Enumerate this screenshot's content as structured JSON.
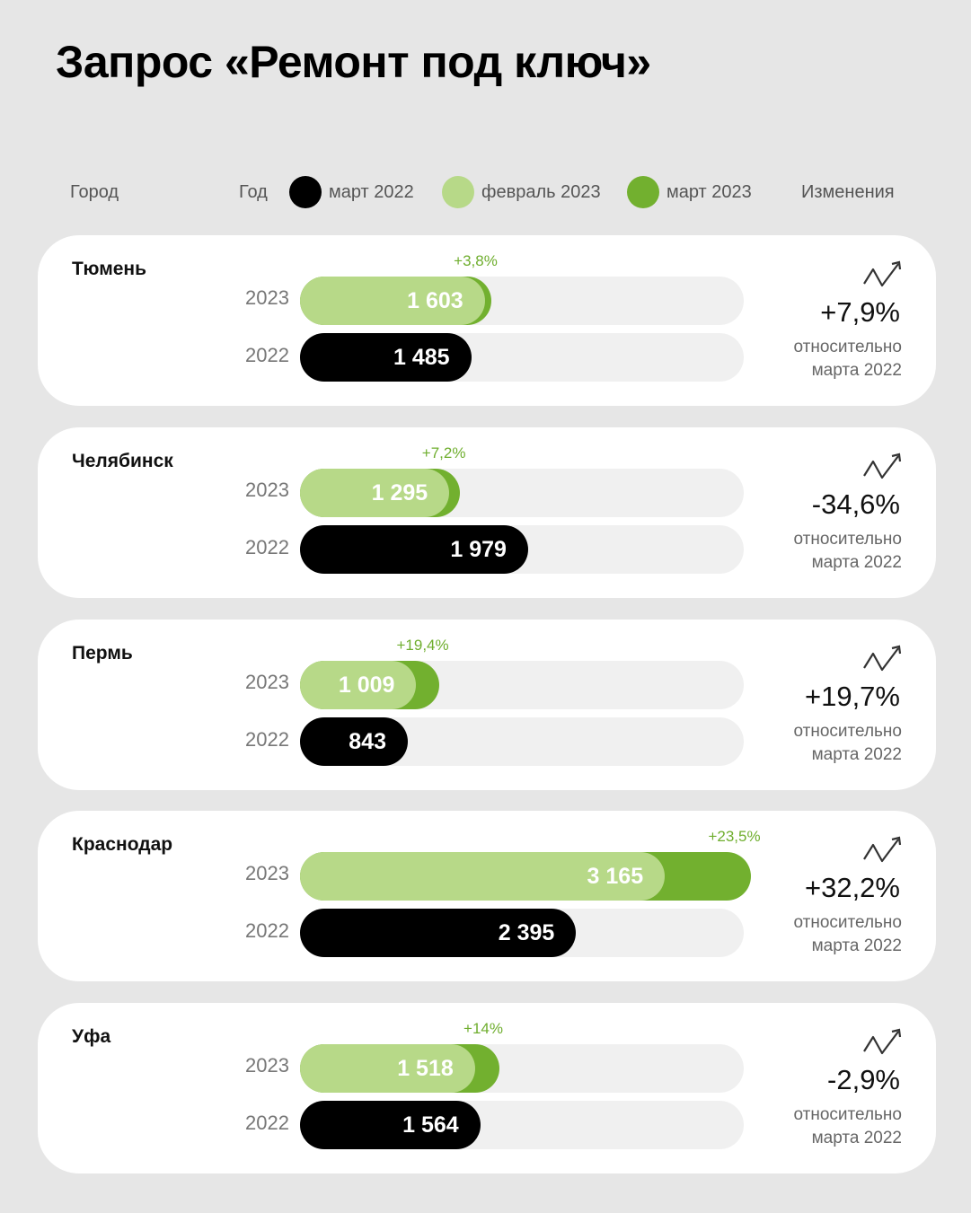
{
  "title": "Запрос «Ремонт под ключ»",
  "header": {
    "city": "Город",
    "year": "Год",
    "legend": [
      {
        "label": "март 2022",
        "color": "#000000"
      },
      {
        "label": "февраль 2023",
        "color": "#b7d988"
      },
      {
        "label": "март 2023",
        "color": "#72b02f"
      }
    ],
    "changes": "Изменения"
  },
  "rel_line1": "относительно",
  "rel_line2": "марта 2022",
  "colors": {
    "feb2023": "#b7d988",
    "mar2023": "#72b02f",
    "mar2022": "#000000",
    "track": "#f0f0f0"
  },
  "chart_data": {
    "type": "bar",
    "categories": [
      "Тюмень",
      "Челябинск",
      "Пермь",
      "Краснодар",
      "Уфа"
    ],
    "series": [
      {
        "name": "март 2022",
        "values": [
          1485,
          1979,
          843,
          2395,
          1564
        ]
      },
      {
        "name": "февраль 2023",
        "values": [
          1603,
          1295,
          1009,
          3165,
          1518
        ]
      }
    ],
    "rows": [
      {
        "city": "Тюмень",
        "y2023": "1 603",
        "y2022": "1 485",
        "v2023": 1603,
        "v2022": 1485,
        "mar2023_frac": 0.038,
        "delta": "+3,8%",
        "change": "+7,9%"
      },
      {
        "city": "Челябинск",
        "y2023": "1 295",
        "y2022": "1 979",
        "v2023": 1295,
        "v2022": 1979,
        "mar2023_frac": 0.072,
        "delta": "+7,2%",
        "change": "-34,6%"
      },
      {
        "city": "Пермь",
        "y2023": "1 009",
        "y2022": "843",
        "v2023": 1009,
        "v2022": 843,
        "mar2023_frac": 0.194,
        "delta": "+19,4%",
        "change": "+19,7%"
      },
      {
        "city": "Краснодар",
        "y2023": "3 165",
        "y2022": "2 395",
        "v2023": 3165,
        "v2022": 2395,
        "mar2023_frac": 0.235,
        "delta": "+23,5%",
        "change": "+32,2%"
      },
      {
        "city": "Уфа",
        "y2023": "1 518",
        "y2022": "1 564",
        "v2023": 1518,
        "v2022": 1564,
        "mar2023_frac": 0.14,
        "delta": "+14%",
        "change": "-2,9%"
      }
    ],
    "year_labels": [
      "2023",
      "2022"
    ]
  }
}
